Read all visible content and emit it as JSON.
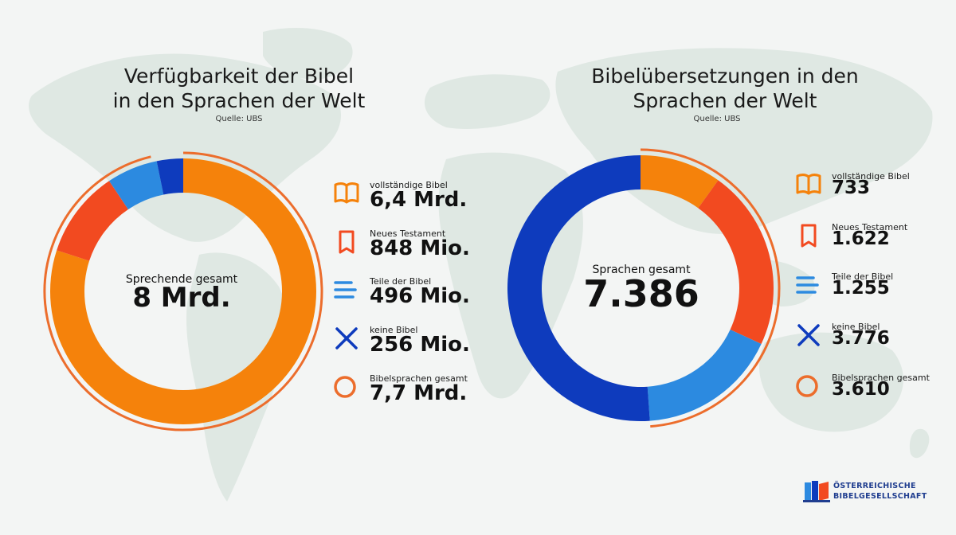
{
  "colors": {
    "orange": "#f5820b",
    "red": "#f24a20",
    "light_blue": "#2c8ae0",
    "dark_blue": "#0e3bbd",
    "accent_ring": "#ec6d2c",
    "map": "#dfe8e3"
  },
  "chart_data": [
    {
      "type": "pie",
      "title_line1": "Verfügbarkeit der Bibel",
      "title_line2": "in den Sprachen der Welt",
      "source": "Quelle: UBS",
      "center_label": "Sprechende gesamt",
      "center_value": "8 Mrd.",
      "total": 8000,
      "ring_value": 7700,
      "slices": [
        {
          "label": "vollständige Bibel",
          "value": 6400,
          "display": "6,4 Mrd.",
          "icon": "open-book-icon",
          "color": "#f5820b"
        },
        {
          "label": "Neues Testament",
          "value": 848,
          "display": "848 Mio.",
          "icon": "closed-book-icon",
          "color": "#f24a20"
        },
        {
          "label": "Teile der Bibel",
          "value": 496,
          "display": "496 Mio.",
          "icon": "lines-icon",
          "color": "#2c8ae0"
        },
        {
          "label": "keine Bibel",
          "value": 256,
          "display": "256 Mio.",
          "icon": "x-icon",
          "color": "#0e3bbd"
        }
      ],
      "ring": {
        "label": "Bibelsprachen gesamt",
        "display": "7,7 Mrd.",
        "icon": "circle-icon",
        "color": "#ec6d2c"
      }
    },
    {
      "type": "pie",
      "title_line1": "Bibelübersetzungen in den",
      "title_line2": "Sprachen der Welt",
      "source": "Quelle: UBS",
      "center_label": "Sprachen gesamt",
      "center_value": "7.386",
      "total": 7386,
      "ring_value": 3610,
      "slices": [
        {
          "label": "vollständige Bibel",
          "value": 733,
          "display": "733",
          "icon": "open-book-icon",
          "color": "#f5820b"
        },
        {
          "label": "Neues Testament",
          "value": 1622,
          "display": "1.622",
          "icon": "closed-book-icon",
          "color": "#f24a20"
        },
        {
          "label": "Teile der Bibel",
          "value": 1255,
          "display": "1.255",
          "icon": "lines-icon",
          "color": "#2c8ae0"
        },
        {
          "label": "keine Bibel",
          "value": 3776,
          "display": "3.776",
          "icon": "x-icon",
          "color": "#0e3bbd"
        }
      ],
      "ring": {
        "label": "Bibelsprachen gesamt",
        "display": "3.610",
        "icon": "circle-icon",
        "color": "#ec6d2c"
      }
    }
  ],
  "logo": {
    "line1": "ÖSTERREICHISCHE",
    "line2": "BIBELGESELLSCHAFT",
    "icon": "book-logo-icon"
  }
}
